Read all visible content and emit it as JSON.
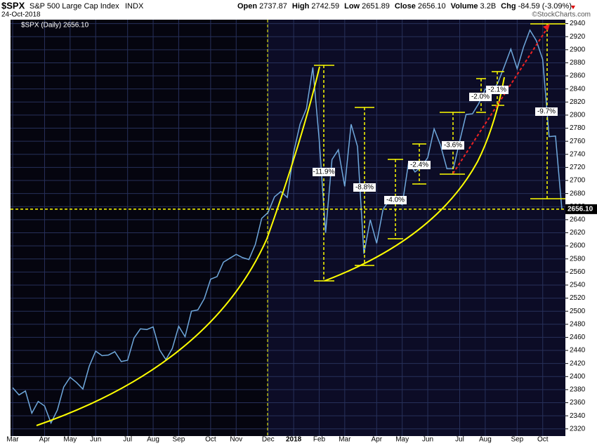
{
  "header": {
    "symbol": "$SPX",
    "name": "S&P 500 Large Cap Index",
    "exchange": "INDX",
    "date": "24-Oct-2018",
    "quote": [
      {
        "label": "Open",
        "value": "2737.87"
      },
      {
        "label": "High",
        "value": "2742.59"
      },
      {
        "label": "Low",
        "value": "2651.89"
      },
      {
        "label": "Close",
        "value": "2656.10"
      },
      {
        "label": "Volume",
        "value": "3.2B"
      },
      {
        "label": "Chg",
        "value": "-84.59 (-3.09%)"
      }
    ],
    "credit": "©StockCharts.com"
  },
  "chart_data": {
    "type": "line",
    "legend": "$SPX (Daily) 2656.10",
    "categories": [
      "Mar",
      null,
      null,
      null,
      null,
      "Apr",
      null,
      null,
      null,
      "May",
      null,
      null,
      null,
      "Jun",
      null,
      null,
      null,
      null,
      "Jul",
      null,
      null,
      null,
      "Aug",
      null,
      null,
      null,
      "Sep",
      null,
      null,
      null,
      null,
      "Oct",
      null,
      null,
      null,
      "Nov",
      null,
      null,
      null,
      null,
      "Dec",
      null,
      null,
      null,
      "2018",
      null,
      null,
      null,
      "Feb",
      null,
      null,
      null,
      "Mar",
      null,
      null,
      null,
      null,
      "Apr",
      null,
      null,
      null,
      "May",
      null,
      null,
      null,
      "Jun",
      null,
      null,
      null,
      null,
      "Jul",
      null,
      null,
      null,
      "Aug",
      null,
      null,
      null,
      null,
      "Sep",
      null,
      null,
      null,
      "Oct",
      null,
      null,
      null
    ],
    "series": [
      {
        "name": "$SPX",
        "color": "#6fa8dc",
        "values": [
          2383,
          2372,
          2378,
          2344,
          2362,
          2355,
          2329,
          2349,
          2384,
          2399,
          2391,
          2381,
          2416,
          2439,
          2432,
          2433,
          2438,
          2423,
          2425,
          2459,
          2473,
          2472,
          2476,
          2441,
          2426,
          2443,
          2477,
          2461,
          2500,
          2502,
          2519,
          2549,
          2553,
          2575,
          2581,
          2587,
          2582,
          2579,
          2602,
          2642,
          2651,
          2675,
          2683,
          2674,
          2743,
          2786,
          2810,
          2873,
          2762,
          2620,
          2732,
          2747,
          2691,
          2786,
          2752,
          2588,
          2640,
          2604,
          2656,
          2670,
          2669,
          2663,
          2728,
          2713,
          2721,
          2735,
          2779,
          2754,
          2718,
          2718,
          2760,
          2801,
          2802,
          2818,
          2840,
          2833,
          2850,
          2875,
          2901,
          2871,
          2904,
          2930,
          2914,
          2885,
          2767,
          2768,
          2656
        ]
      }
    ],
    "ylim": [
      2309,
      2946
    ],
    "yticks": [
      2320,
      2340,
      2360,
      2380,
      2400,
      2420,
      2440,
      2460,
      2480,
      2500,
      2520,
      2540,
      2560,
      2580,
      2600,
      2620,
      2640,
      2660,
      2680,
      2700,
      2720,
      2740,
      2760,
      2780,
      2800,
      2820,
      2840,
      2860,
      2880,
      2900,
      2920,
      2940
    ],
    "grid": true,
    "last_price": {
      "value": 2656.1,
      "label": "2656.10"
    },
    "annotations": [
      "-11.9%",
      "-8.8%",
      "-4.0%",
      "-2.4%",
      "-3.6%",
      "-2.0%",
      "-2.1%",
      "-9.7%"
    ]
  }
}
